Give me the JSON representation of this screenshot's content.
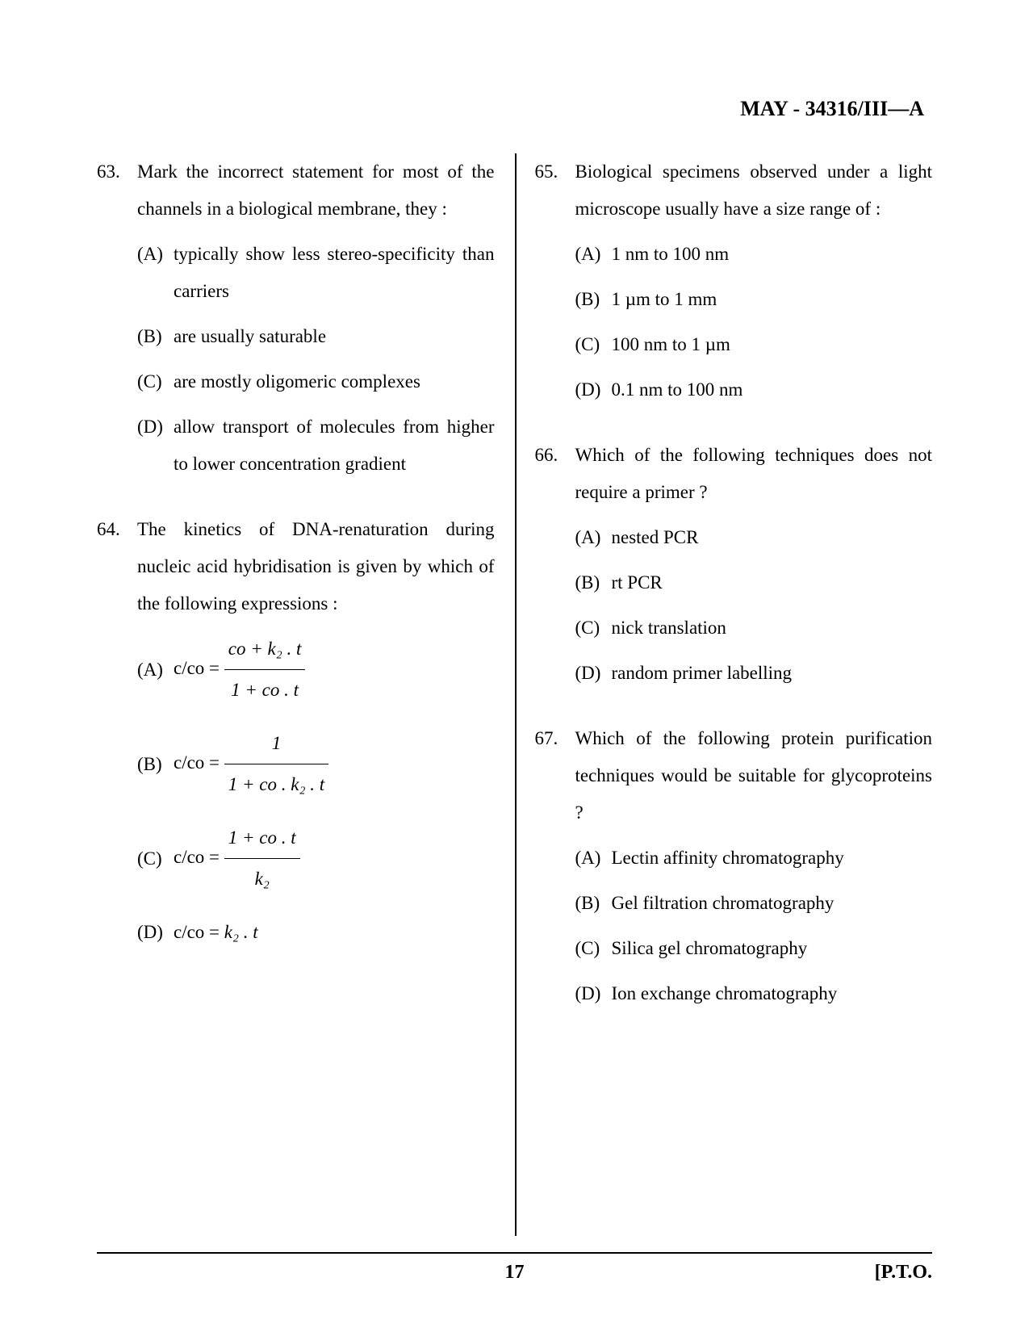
{
  "header": "MAY - 34316/III—A",
  "footer": {
    "page": "17",
    "pto": "[P.T.O."
  },
  "questions": {
    "q63": {
      "number": "63.",
      "text": "Mark the incorrect statement for most of the channels in a biological membrane, they :",
      "options": {
        "a": {
          "label": "(A)",
          "text": "typically show less stereo-specificity than carriers"
        },
        "b": {
          "label": "(B)",
          "text": "are usually saturable"
        },
        "c": {
          "label": "(C)",
          "text": "are mostly oligomeric complexes"
        },
        "d": {
          "label": "(D)",
          "text": "allow transport of molecules from higher to lower concentration gradient"
        }
      }
    },
    "q64": {
      "number": "64.",
      "text": "The kinetics of DNA-renaturation during nucleic acid hybridisation is given by which of the following expressions :",
      "options": {
        "a": {
          "label": "(A)",
          "lhs": "c/co = ",
          "num": "co + k₂ . t",
          "den": "1 + co . t"
        },
        "b": {
          "label": "(B)",
          "lhs": "c/co = ",
          "num": "1",
          "den": "1 + co . k₂ . t"
        },
        "c": {
          "label": "(C)",
          "lhs": "c/co = ",
          "num": "1 + co . t",
          "den": "k₂"
        },
        "d": {
          "label": "(D)",
          "lhs": "c/co = ",
          "rhs": "k₂ . t"
        }
      }
    },
    "q65": {
      "number": "65.",
      "text": "Biological specimens observed under a light microscope usually have a size range of :",
      "options": {
        "a": {
          "label": "(A)",
          "text": "1 nm to 100 nm"
        },
        "b": {
          "label": "(B)",
          "text": "1 µm to 1 mm"
        },
        "c": {
          "label": "(C)",
          "text": "100 nm to 1 µm"
        },
        "d": {
          "label": "(D)",
          "text": "0.1 nm to 100 nm"
        }
      }
    },
    "q66": {
      "number": "66.",
      "text": "Which of the following techniques does not require a primer ?",
      "options": {
        "a": {
          "label": "(A)",
          "text": "nested PCR"
        },
        "b": {
          "label": "(B)",
          "text": "rt PCR"
        },
        "c": {
          "label": "(C)",
          "text": "nick translation"
        },
        "d": {
          "label": "(D)",
          "text": "random primer labelling"
        }
      }
    },
    "q67": {
      "number": "67.",
      "text": "Which of the following protein purification techniques would be suitable for glycoproteins ?",
      "options": {
        "a": {
          "label": "(A)",
          "text": "Lectin affinity chromatography"
        },
        "b": {
          "label": "(B)",
          "text": "Gel filtration chromatography"
        },
        "c": {
          "label": "(C)",
          "text": "Silica gel chromatography"
        },
        "d": {
          "label": "(D)",
          "text": "Ion exchange chromatography"
        }
      }
    }
  }
}
